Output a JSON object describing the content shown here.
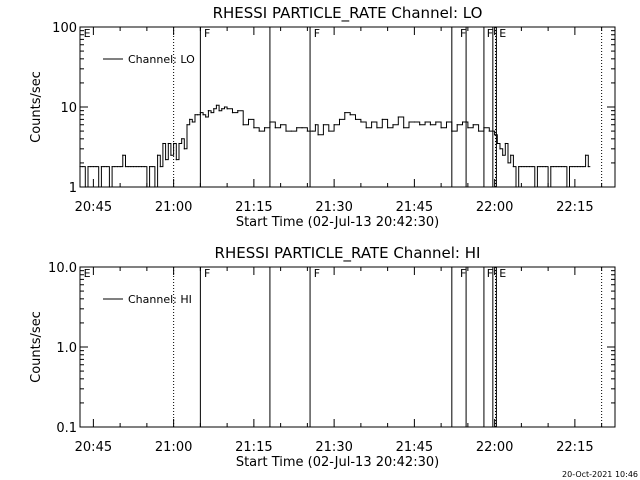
{
  "footer": {
    "timestamp": "20-Oct-2021 10:46"
  },
  "chart_data": [
    {
      "type": "line",
      "title": "RHESSI PARTICLE_RATE Channel: LO",
      "xlabel": "Start Time (02-Jul-13 20:42:30)",
      "ylabel": "Counts/sec",
      "yscale": "log",
      "ylim": [
        1,
        100
      ],
      "yticks": [
        1,
        10,
        100
      ],
      "ytick_labels": [
        "1",
        "10",
        "100"
      ],
      "xlim": [
        "20:42:30",
        "22:22:30"
      ],
      "xticks": [
        "20:45",
        "21:00",
        "21:15",
        "21:30",
        "21:45",
        "22:00",
        "22:15"
      ],
      "legend": "top-left",
      "series": [
        {
          "name": "Channel: LO",
          "x": [
            "20:42:30",
            "20:43:00",
            "20:43:30",
            "20:44:00",
            "20:44:30",
            "20:45:00",
            "20:45:30",
            "20:46:00",
            "20:46:30",
            "20:47:00",
            "20:47:30",
            "20:48:00",
            "20:48:30",
            "20:49:00",
            "20:49:30",
            "20:50:00",
            "20:50:30",
            "20:51:00",
            "20:51:30",
            "20:52:00",
            "20:52:30",
            "20:53:00",
            "20:53:30",
            "20:54:00",
            "20:54:30",
            "20:55:00",
            "20:55:30",
            "20:56:00",
            "20:56:30",
            "20:57:00",
            "20:57:30",
            "20:58:00",
            "20:58:30",
            "20:59:00",
            "20:59:30",
            "21:00:00",
            "21:00:30",
            "21:01:00",
            "21:01:30",
            "21:02:00",
            "21:02:30",
            "21:03:00",
            "21:03:30",
            "21:04:00",
            "21:04:30",
            "21:05:00",
            "21:05:30",
            "21:06:00",
            "21:06:30",
            "21:07:00",
            "21:07:30",
            "21:08:00",
            "21:08:30",
            "21:09:00",
            "21:09:30",
            "21:10:00",
            "21:11:00",
            "21:12:00",
            "21:13:00",
            "21:14:00",
            "21:15:00",
            "21:16:00",
            "21:17:00",
            "21:18:00",
            "21:19:00",
            "21:20:00",
            "21:21:00",
            "21:22:00",
            "21:23:00",
            "21:24:00",
            "21:25:00",
            "21:26:00",
            "21:26:30",
            "21:27:00",
            "21:28:00",
            "21:29:00",
            "21:30:00",
            "21:31:00",
            "21:32:00",
            "21:33:00",
            "21:34:00",
            "21:35:00",
            "21:36:00",
            "21:37:00",
            "21:38:00",
            "21:39:00",
            "21:40:00",
            "21:41:00",
            "21:42:00",
            "21:43:00",
            "21:44:00",
            "21:45:00",
            "21:46:00",
            "21:47:00",
            "21:48:00",
            "21:49:00",
            "21:50:00",
            "21:51:00",
            "21:52:00",
            "21:53:00",
            "21:54:00",
            "21:55:00",
            "21:56:00",
            "21:57:00",
            "21:58:00",
            "21:59:00",
            "22:00:00",
            "22:00:30",
            "22:01:00",
            "22:01:30",
            "22:02:00",
            "22:02:30",
            "22:03:00",
            "22:03:30",
            "22:04:00",
            "22:04:30",
            "22:05:00",
            "22:05:30",
            "22:06:00",
            "22:06:30",
            "22:07:00",
            "22:07:30",
            "22:08:00",
            "22:08:30",
            "22:09:00",
            "22:09:30",
            "22:10:00",
            "22:10:30",
            "22:11:00",
            "22:11:30",
            "22:12:00",
            "22:12:30",
            "22:13:00",
            "22:13:30",
            "22:14:00",
            "22:14:30",
            "22:15:00",
            "22:15:30",
            "22:16:00",
            "22:16:30",
            "22:17:00",
            "22:17:30"
          ],
          "y": [
            1.8,
            1.8,
            1.0,
            1.8,
            1.8,
            1.8,
            1.8,
            1.0,
            1.8,
            1.8,
            1.8,
            1.0,
            1.8,
            1.8,
            1.8,
            1.8,
            2.5,
            1.8,
            1.8,
            1.8,
            1.8,
            1.8,
            1.8,
            1.8,
            1.8,
            1.0,
            1.8,
            1.8,
            1.0,
            2.5,
            1.8,
            3.5,
            2.2,
            3.5,
            2.5,
            3.5,
            2.2,
            3.5,
            4.0,
            3.0,
            6.0,
            7.0,
            6.5,
            8.0,
            8.0,
            8.5,
            8.0,
            7.5,
            9.0,
            8.5,
            9.5,
            10.5,
            9.0,
            9.5,
            10.0,
            9.5,
            8.5,
            9.0,
            6.0,
            7.0,
            5.5,
            5.0,
            5.5,
            6.5,
            5.5,
            6.0,
            5.0,
            5.0,
            5.5,
            5.5,
            5.0,
            5.0,
            6.0,
            4.5,
            6.0,
            5.0,
            6.0,
            7.0,
            8.5,
            8.0,
            7.0,
            6.5,
            5.5,
            6.5,
            5.5,
            7.0,
            5.5,
            6.0,
            7.5,
            5.5,
            6.5,
            6.5,
            6.0,
            6.5,
            6.0,
            6.5,
            5.5,
            6.5,
            5.0,
            6.0,
            6.5,
            5.5,
            6.0,
            5.0,
            5.5,
            5.0,
            4.5,
            3.5,
            3.0,
            2.5,
            3.5,
            2.0,
            2.5,
            1.8,
            1.0,
            1.8,
            1.8,
            1.8,
            1.8,
            1.8,
            1.8,
            1.0,
            1.8,
            1.8,
            1.8,
            1.8,
            1.0,
            1.8,
            1.8,
            1.8,
            1.8,
            1.8,
            1.8,
            1.0,
            1.8,
            1.8,
            1.8,
            1.8,
            1.8,
            1.8,
            2.5,
            1.8
          ]
        }
      ],
      "vlines_solid": [
        "21:05:00",
        "21:18:00",
        "21:25:30",
        "21:52:00",
        "21:54:40",
        "21:58:00",
        "21:59:40",
        "22:00:20"
      ],
      "vlines_dotted": [
        "21:00:00",
        "22:00:10",
        "22:20:00"
      ],
      "flags": [
        {
          "text": "E",
          "at": "20:43:00"
        },
        {
          "text": "F",
          "at": "21:05:30"
        },
        {
          "text": "F",
          "at": "21:26:00"
        },
        {
          "text": "F",
          "at": "21:53:20"
        },
        {
          "text": "F",
          "at": "21:58:20"
        },
        {
          "text": "E",
          "at": "22:00:40"
        }
      ]
    },
    {
      "type": "line",
      "title": "RHESSI PARTICLE_RATE Channel: HI",
      "xlabel": "Start Time (02-Jul-13 20:42:30)",
      "ylabel": "Counts/sec",
      "yscale": "log",
      "ylim": [
        0.1,
        10.0
      ],
      "yticks": [
        0.1,
        1.0,
        10.0
      ],
      "ytick_labels": [
        "0.1",
        "1.0",
        "10.0"
      ],
      "xlim": [
        "20:42:30",
        "22:22:30"
      ],
      "xticks": [
        "20:45",
        "21:00",
        "21:15",
        "21:30",
        "21:45",
        "22:00",
        "22:15"
      ],
      "legend": "top-left",
      "series": [
        {
          "name": "Channel: HI",
          "x": [],
          "y": []
        }
      ],
      "vlines_solid": [
        "21:05:00",
        "21:18:00",
        "21:25:30",
        "21:52:00",
        "21:54:40",
        "21:58:00",
        "21:59:40",
        "22:00:20"
      ],
      "vlines_dotted": [
        "21:00:00",
        "22:00:10",
        "22:20:00"
      ],
      "flags": [
        {
          "text": "E",
          "at": "20:43:00"
        },
        {
          "text": "F",
          "at": "21:05:30"
        },
        {
          "text": "F",
          "at": "21:26:00"
        },
        {
          "text": "F",
          "at": "21:53:20"
        },
        {
          "text": "F",
          "at": "21:58:20"
        },
        {
          "text": "E",
          "at": "22:00:40"
        }
      ]
    }
  ]
}
